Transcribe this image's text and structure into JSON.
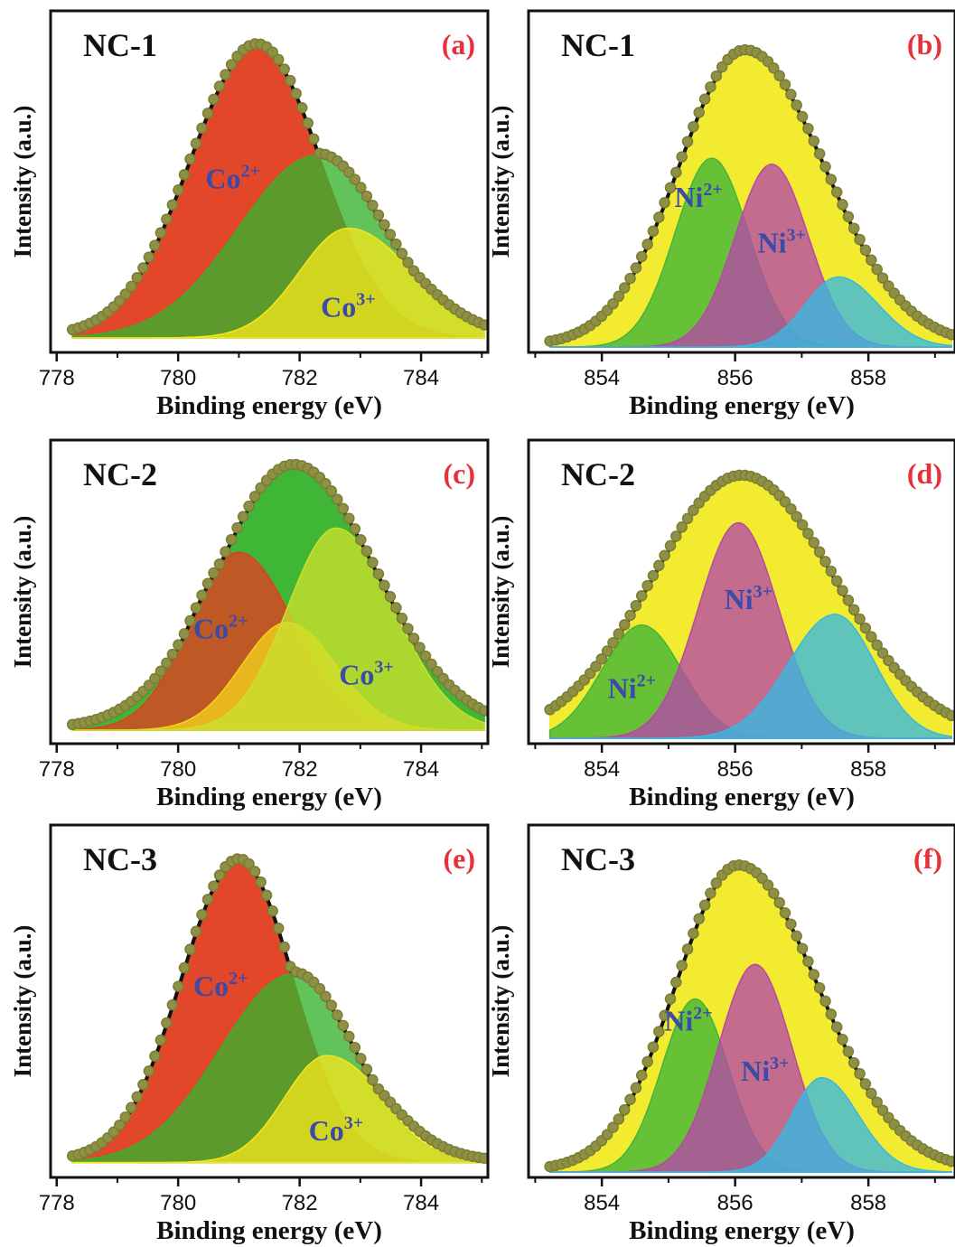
{
  "chart_data": [
    {
      "type": "area",
      "panel": "(a)",
      "sample": "NC-1",
      "xlabel": "Binding energy (eV)",
      "ylabel": "Intensity (a.u.)",
      "xlim": [
        777.9,
        785.1
      ],
      "ylim": [
        0,
        1.08
      ],
      "xticks": [
        778,
        780,
        782,
        784
      ],
      "components": [
        {
          "label": "Co",
          "sup": "2+",
          "center": 781.3,
          "height": 0.96,
          "width_left": 1.1,
          "width_right": 1.05,
          "color": "#e23d1f",
          "label_pos": [
            780.9,
            0.52
          ]
        },
        {
          "label": "",
          "sup": "",
          "center": 782.3,
          "height": 0.6,
          "width_left": 1.3,
          "width_right": 1.1,
          "color": "#35b22b",
          "label_pos": null
        },
        {
          "label": "Co",
          "sup": "3+",
          "center": 782.8,
          "height": 0.36,
          "width_left": 0.8,
          "width_right": 1.05,
          "color": "#f4e61e",
          "label_pos": [
            782.8,
            0.1
          ]
        }
      ],
      "background": 0.03,
      "envelope_color": "#111111",
      "data_color": "#7b7d33"
    },
    {
      "type": "area",
      "panel": "(b)",
      "sample": "NC-1",
      "xlabel": "Binding energy (eV)",
      "ylabel": "Intensity (a.u.)",
      "xlim": [
        852.9,
        859.3
      ],
      "ylim": [
        0,
        1.08
      ],
      "xticks": [
        854,
        856,
        858
      ],
      "components": [
        {
          "label": "",
          "sup": "",
          "center": 856.15,
          "height": 0.97,
          "width_left": 1.0,
          "width_right": 1.2,
          "color": "#f2ea25",
          "label_pos": null
        },
        {
          "label": "Ni",
          "sup": "2+",
          "center": 855.65,
          "height": 0.62,
          "width_left": 0.55,
          "width_right": 0.55,
          "color": "#3fb53a",
          "label_pos": [
            855.45,
            0.46
          ]
        },
        {
          "label": "Ni",
          "sup": "3+",
          "center": 856.55,
          "height": 0.6,
          "width_left": 0.55,
          "width_right": 0.55,
          "color": "#b548a8",
          "label_pos": [
            856.7,
            0.31
          ]
        },
        {
          "label": "",
          "sup": "",
          "center": 857.55,
          "height": 0.23,
          "width_left": 0.5,
          "width_right": 0.6,
          "color": "#36b9e2",
          "label_pos": null
        }
      ],
      "background": 0.0,
      "envelope_color": "#111111",
      "data_color": "#7b7d33"
    },
    {
      "type": "area",
      "panel": "(c)",
      "sample": "NC-2",
      "xlabel": "Binding energy (eV)",
      "ylabel": "Intensity (a.u.)",
      "xlim": [
        777.9,
        785.1
      ],
      "ylim": [
        0,
        1.08
      ],
      "xticks": [
        778,
        780,
        782,
        784
      ],
      "components": [
        {
          "label": "",
          "sup": "",
          "center": 781.9,
          "height": 0.98,
          "width_left": 1.25,
          "width_right": 1.35,
          "color": "#35b22b",
          "label_pos": null
        },
        {
          "label": "Co",
          "sup": "2+",
          "center": 781.0,
          "height": 0.66,
          "width_left": 0.8,
          "width_right": 0.9,
          "color": "#e23d1f",
          "label_pos": [
            780.7,
            0.37
          ]
        },
        {
          "label": "",
          "sup": "",
          "center": 781.8,
          "height": 0.4,
          "width_left": 0.75,
          "width_right": 0.8,
          "color": "#f4d21e",
          "label_pos": null
        },
        {
          "label": "Co",
          "sup": "3+",
          "center": 782.6,
          "height": 0.75,
          "width_left": 0.8,
          "width_right": 0.95,
          "color": "#cbe02b",
          "label_pos": [
            783.1,
            0.2
          ]
        }
      ],
      "background": 0.03,
      "envelope_color": "#111111",
      "data_color": "#7b7d33"
    },
    {
      "type": "area",
      "panel": "(d)",
      "sample": "NC-2",
      "xlabel": "Binding energy (eV)",
      "ylabel": "Intensity (a.u.)",
      "xlim": [
        852.9,
        859.3
      ],
      "ylim": [
        0,
        1.08
      ],
      "xticks": [
        854,
        856,
        858
      ],
      "components": [
        {
          "label": "",
          "sup": "",
          "center": 856.1,
          "height": 0.97,
          "width_left": 1.35,
          "width_right": 1.4,
          "color": "#f2ea25",
          "label_pos": null
        },
        {
          "label": "Ni",
          "sup": "2+",
          "center": 854.6,
          "height": 0.42,
          "width_left": 0.6,
          "width_right": 0.6,
          "color": "#3fb53a",
          "label_pos": [
            854.45,
            0.15
          ]
        },
        {
          "label": "Ni",
          "sup": "3+",
          "center": 856.05,
          "height": 0.8,
          "width_left": 0.6,
          "width_right": 0.6,
          "color": "#b548a8",
          "label_pos": [
            856.2,
            0.48
          ]
        },
        {
          "label": "",
          "sup": "",
          "center": 857.5,
          "height": 0.46,
          "width_left": 0.7,
          "width_right": 0.6,
          "color": "#36b9e2",
          "label_pos": null
        }
      ],
      "background": 0.0,
      "envelope_color": "#111111",
      "data_color": "#7b7d33"
    },
    {
      "type": "area",
      "panel": "(e)",
      "sample": "NC-3",
      "xlabel": "Binding energy (eV)",
      "ylabel": "Intensity (a.u.)",
      "xlim": [
        777.9,
        785.1
      ],
      "ylim": [
        0,
        1.08
      ],
      "xticks": [
        778,
        780,
        782,
        784
      ],
      "components": [
        {
          "label": "Co",
          "sup": "2+",
          "center": 781.0,
          "height": 0.96,
          "width_left": 0.95,
          "width_right": 0.9,
          "color": "#e23d1f",
          "label_pos": [
            780.7,
            0.56
          ]
        },
        {
          "label": "",
          "sup": "",
          "center": 781.9,
          "height": 0.6,
          "width_left": 1.2,
          "width_right": 1.0,
          "color": "#35b22b",
          "label_pos": null
        },
        {
          "label": "Co",
          "sup": "3+",
          "center": 782.45,
          "height": 0.34,
          "width_left": 0.7,
          "width_right": 0.95,
          "color": "#f4e61e",
          "label_pos": [
            782.6,
            0.1
          ]
        }
      ],
      "background": 0.03,
      "envelope_color": "#111111",
      "data_color": "#7b7d33"
    },
    {
      "type": "area",
      "panel": "(f)",
      "sample": "NC-3",
      "xlabel": "Binding energy (eV)",
      "ylabel": "Intensity (a.u.)",
      "xlim": [
        852.9,
        859.3
      ],
      "ylim": [
        0,
        1.08
      ],
      "xticks": [
        854,
        856,
        858
      ],
      "components": [
        {
          "label": "",
          "sup": "",
          "center": 856.05,
          "height": 0.97,
          "width_left": 0.95,
          "width_right": 1.2,
          "color": "#f2ea25",
          "label_pos": [
            null,
            null
          ]
        },
        {
          "label": "Ni",
          "sup": "2+",
          "center": 855.4,
          "height": 0.55,
          "width_left": 0.5,
          "width_right": 0.5,
          "color": "#3fb53a",
          "label_pos": [
            855.3,
            0.45
          ]
        },
        {
          "label": "Ni",
          "sup": "3+",
          "center": 856.3,
          "height": 0.66,
          "width_left": 0.55,
          "width_right": 0.55,
          "color": "#b548a8",
          "label_pos": [
            856.45,
            0.29
          ]
        },
        {
          "label": "",
          "sup": "",
          "center": 857.3,
          "height": 0.3,
          "width_left": 0.45,
          "width_right": 0.55,
          "color": "#36b9e2",
          "label_pos": null
        }
      ],
      "background": 0.0,
      "envelope_color": "#111111",
      "data_color": "#7b7d33"
    }
  ]
}
